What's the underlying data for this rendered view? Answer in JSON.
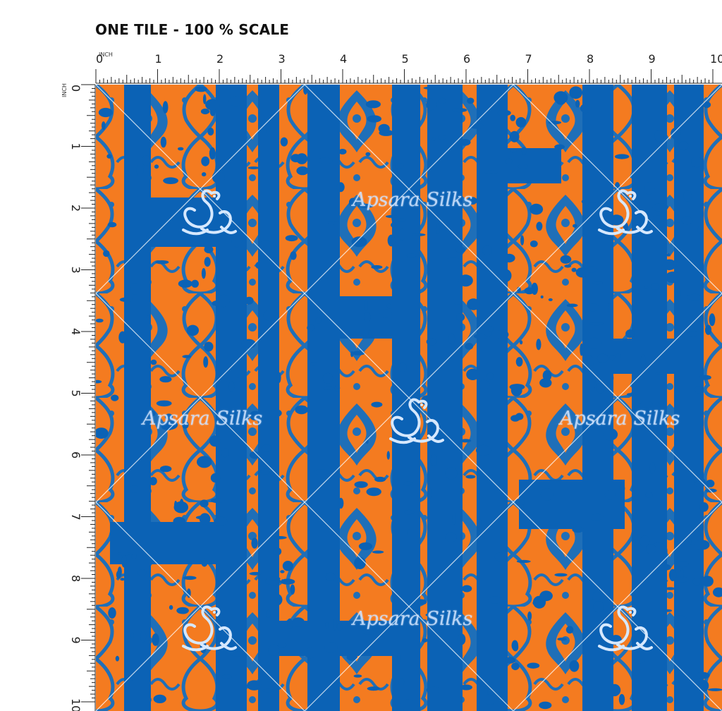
{
  "header": {
    "title": "ONE TILE - 100 % SCALE"
  },
  "ruler": {
    "unit_label": "INCH",
    "top_labels": [
      "0",
      "1",
      "2",
      "3",
      "4",
      "5",
      "6",
      "7",
      "8",
      "9",
      "10"
    ],
    "left_labels": [
      "0",
      "1",
      "2",
      "3",
      "4",
      "5",
      "6",
      "7",
      "8",
      "9",
      "10"
    ]
  },
  "fabric": {
    "background_color": "#0B62B5",
    "pattern_color": "#F47B20",
    "outline_color": "#1F5E9E",
    "watermark_color": "#D6E8FF",
    "motif": "damask ogee",
    "watermark_text": "Apsara Silks"
  }
}
